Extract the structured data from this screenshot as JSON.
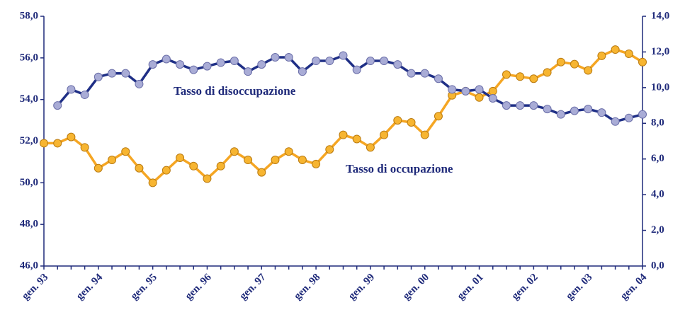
{
  "chart_data": {
    "type": "line",
    "categories": [
      "gen. 93",
      null,
      null,
      null,
      "gen. 94",
      null,
      null,
      null,
      "gen. 95",
      null,
      null,
      null,
      "gen. 96",
      null,
      null,
      null,
      "gen. 97",
      null,
      null,
      null,
      "gen. 98",
      null,
      null,
      null,
      "gen. 99",
      null,
      null,
      null,
      "gen. 00",
      null,
      null,
      null,
      "gen. 01",
      null,
      null,
      null,
      "gen. 02",
      null,
      null,
      null,
      "gen. 03",
      null,
      null,
      null,
      "gen. 04"
    ],
    "series": [
      {
        "name": "Tasso di occupazione",
        "color": "#f5a623",
        "marker_color": "#f7b531",
        "values": [
          51.9,
          51.9,
          52.2,
          51.7,
          50.7,
          51.1,
          51.5,
          50.7,
          50.0,
          50.6,
          51.2,
          50.8,
          50.2,
          50.8,
          51.5,
          51.1,
          50.5,
          51.1,
          51.5,
          51.1,
          50.9,
          51.6,
          52.3,
          52.1,
          51.7,
          52.3,
          53.0,
          52.9,
          52.3,
          53.2,
          54.2,
          54.4,
          54.1,
          54.4,
          55.2,
          55.1,
          55.0,
          55.3,
          55.8,
          55.7,
          55.4,
          56.1,
          56.4,
          56.2,
          55.8
        ]
      },
      {
        "name": "Tasso di disoccupazione",
        "color": "#1f2f86",
        "marker_color": "#a9acd6",
        "axis": "y2",
        "values": [
          null,
          9.0,
          9.9,
          9.6,
          10.6,
          10.8,
          10.8,
          10.2,
          11.3,
          11.6,
          11.3,
          11.0,
          11.2,
          11.4,
          11.5,
          10.9,
          11.3,
          11.7,
          11.7,
          10.9,
          11.5,
          11.5,
          11.8,
          11.0,
          11.5,
          11.5,
          11.3,
          10.8,
          10.8,
          10.5,
          9.9,
          9.8,
          9.9,
          9.4,
          9.0,
          9.0,
          9.0,
          8.8,
          8.5,
          8.7,
          8.8,
          8.6,
          8.1,
          8.3,
          8.5
        ]
      }
    ],
    "ylim": [
      46,
      58
    ],
    "yticks": [
      {
        "value": 46,
        "label": "46,0"
      },
      {
        "value": 48,
        "label": "48,0"
      },
      {
        "value": 50,
        "label": "50,0"
      },
      {
        "value": 52,
        "label": "52,0"
      },
      {
        "value": 54,
        "label": "54,0"
      },
      {
        "value": 56,
        "label": "56,0"
      },
      {
        "value": 58,
        "label": "58,0"
      }
    ],
    "y2lim": [
      0,
      14
    ],
    "y2ticks": [
      {
        "value": 0,
        "label": "0,0"
      },
      {
        "value": 2,
        "label": "2,0"
      },
      {
        "value": 4,
        "label": "4,0"
      },
      {
        "value": 6,
        "label": "6,0"
      },
      {
        "value": 8,
        "label": "8,0"
      },
      {
        "value": 10,
        "label": "10,0"
      },
      {
        "value": 12,
        "label": "12,0"
      },
      {
        "value": 14,
        "label": "14,0"
      }
    ],
    "grid": false
  }
}
